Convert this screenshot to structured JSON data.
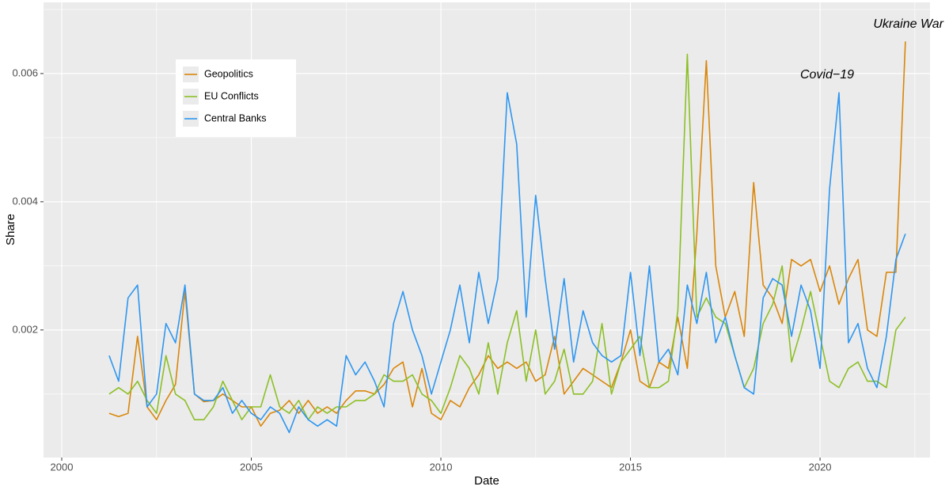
{
  "chart_data": {
    "type": "line",
    "xlabel": "Date",
    "ylabel": "Share",
    "xlim": [
      1999.52,
      2022.9
    ],
    "ylim": [
      1e-05,
      0.00711
    ],
    "xticks": [
      2000,
      2005,
      2010,
      2015,
      2020
    ],
    "xminorticks": [
      2002.5,
      2007.5,
      2012.5,
      2017.5,
      2022.5
    ],
    "yticks": [
      0.002,
      0.004,
      0.006
    ],
    "yminorticks": [
      0.001,
      0.003,
      0.005,
      0.007
    ],
    "grid": true,
    "annotations": [
      "Covid−19",
      "Ukraine War"
    ],
    "x": [
      2001.25,
      2001.5,
      2001.75,
      2002,
      2002.25,
      2002.5,
      2002.75,
      2003,
      2003.25,
      2003.5,
      2003.75,
      2004,
      2004.25,
      2004.5,
      2004.75,
      2005,
      2005.25,
      2005.5,
      2005.75,
      2006,
      2006.25,
      2006.5,
      2006.75,
      2007,
      2007.25,
      2007.5,
      2007.75,
      2008,
      2008.25,
      2008.5,
      2008.75,
      2009,
      2009.25,
      2009.5,
      2009.75,
      2010,
      2010.25,
      2010.5,
      2010.75,
      2011,
      2011.25,
      2011.5,
      2011.75,
      2012,
      2012.25,
      2012.5,
      2012.75,
      2013,
      2013.25,
      2013.5,
      2013.75,
      2014,
      2014.25,
      2014.5,
      2014.75,
      2015,
      2015.25,
      2015.5,
      2015.75,
      2016,
      2016.25,
      2016.5,
      2016.75,
      2017,
      2017.25,
      2017.5,
      2017.75,
      2018,
      2018.25,
      2018.5,
      2018.75,
      2019,
      2019.25,
      2019.5,
      2019.75,
      2020,
      2020.25,
      2020.5,
      2020.75,
      2021,
      2021.25,
      2021.5,
      2021.75,
      2022,
      2022.25
    ],
    "series": [
      {
        "name": "Geopolitics",
        "color": "#d9860a",
        "values": [
          0.0007,
          0.00065,
          0.0007,
          0.0019,
          0.0008,
          0.0006,
          0.0009,
          0.00115,
          0.0026,
          0.001,
          0.00088,
          0.0009,
          0.001,
          0.0009,
          0.0008,
          0.0008,
          0.0005,
          0.0007,
          0.00075,
          0.0009,
          0.0007,
          0.0009,
          0.0007,
          0.0008,
          0.0007,
          0.0009,
          0.00105,
          0.00105,
          0.001,
          0.00115,
          0.0014,
          0.0015,
          0.0008,
          0.0014,
          0.0007,
          0.0006,
          0.0009,
          0.0008,
          0.0011,
          0.0013,
          0.0016,
          0.0014,
          0.0015,
          0.0014,
          0.0015,
          0.0012,
          0.0013,
          0.0019,
          0.001,
          0.0012,
          0.0014,
          0.0013,
          0.0012,
          0.0011,
          0.0015,
          0.002,
          0.0012,
          0.0011,
          0.0015,
          0.0014,
          0.0022,
          0.0014,
          0.0035,
          0.0062,
          0.003,
          0.0022,
          0.0026,
          0.0019,
          0.0043,
          0.0027,
          0.0025,
          0.0021,
          0.0031,
          0.003,
          0.0031,
          0.0026,
          0.003,
          0.0024,
          0.0028,
          0.0031,
          0.002,
          0.0019,
          0.0029,
          0.0029,
          0.0065
        ]
      },
      {
        "name": "EU Conflicts",
        "color": "#8cbf26",
        "values": [
          0.001,
          0.0011,
          0.001,
          0.0012,
          0.0009,
          0.0007,
          0.0016,
          0.001,
          0.0009,
          0.0006,
          0.0006,
          0.0008,
          0.0012,
          0.0009,
          0.0006,
          0.0008,
          0.0008,
          0.0013,
          0.0008,
          0.0007,
          0.0009,
          0.0006,
          0.0008,
          0.0007,
          0.0008,
          0.0008,
          0.0009,
          0.0009,
          0.001,
          0.0013,
          0.0012,
          0.0012,
          0.0013,
          0.001,
          0.0009,
          0.0007,
          0.0011,
          0.0016,
          0.0014,
          0.001,
          0.0018,
          0.001,
          0.0018,
          0.0023,
          0.0012,
          0.002,
          0.001,
          0.0012,
          0.0017,
          0.001,
          0.001,
          0.0012,
          0.0021,
          0.001,
          0.0015,
          0.0017,
          0.0019,
          0.0011,
          0.0011,
          0.0012,
          0.0023,
          0.0063,
          0.0022,
          0.0025,
          0.0022,
          0.0021,
          0.0016,
          0.0011,
          0.0014,
          0.0021,
          0.0024,
          0.003,
          0.0015,
          0.002,
          0.0026,
          0.0019,
          0.0012,
          0.0011,
          0.0014,
          0.0015,
          0.0012,
          0.0012,
          0.0011,
          0.002,
          0.0022
        ]
      },
      {
        "name": "Central Banks",
        "color": "#2e96f0",
        "values": [
          0.0016,
          0.0012,
          0.0025,
          0.0027,
          0.0008,
          0.001,
          0.0021,
          0.0018,
          0.0027,
          0.001,
          0.0009,
          0.0009,
          0.0011,
          0.0007,
          0.0009,
          0.0007,
          0.0006,
          0.0008,
          0.0007,
          0.0004,
          0.0008,
          0.0006,
          0.0005,
          0.0006,
          0.0005,
          0.0016,
          0.0013,
          0.0015,
          0.0012,
          0.0008,
          0.0021,
          0.0026,
          0.002,
          0.0016,
          0.001,
          0.0015,
          0.002,
          0.0027,
          0.0018,
          0.0029,
          0.0021,
          0.0028,
          0.0057,
          0.0049,
          0.0022,
          0.0041,
          0.0028,
          0.0017,
          0.0028,
          0.0015,
          0.0023,
          0.0018,
          0.0016,
          0.0015,
          0.0016,
          0.0029,
          0.0016,
          0.003,
          0.0015,
          0.0017,
          0.0013,
          0.0027,
          0.0021,
          0.0029,
          0.0018,
          0.0022,
          0.0016,
          0.0011,
          0.001,
          0.0025,
          0.0028,
          0.0027,
          0.0019,
          0.0027,
          0.0023,
          0.0014,
          0.0042,
          0.0057,
          0.0018,
          0.0021,
          0.0014,
          0.0011,
          0.0019,
          0.0031,
          0.0035
        ]
      }
    ]
  }
}
